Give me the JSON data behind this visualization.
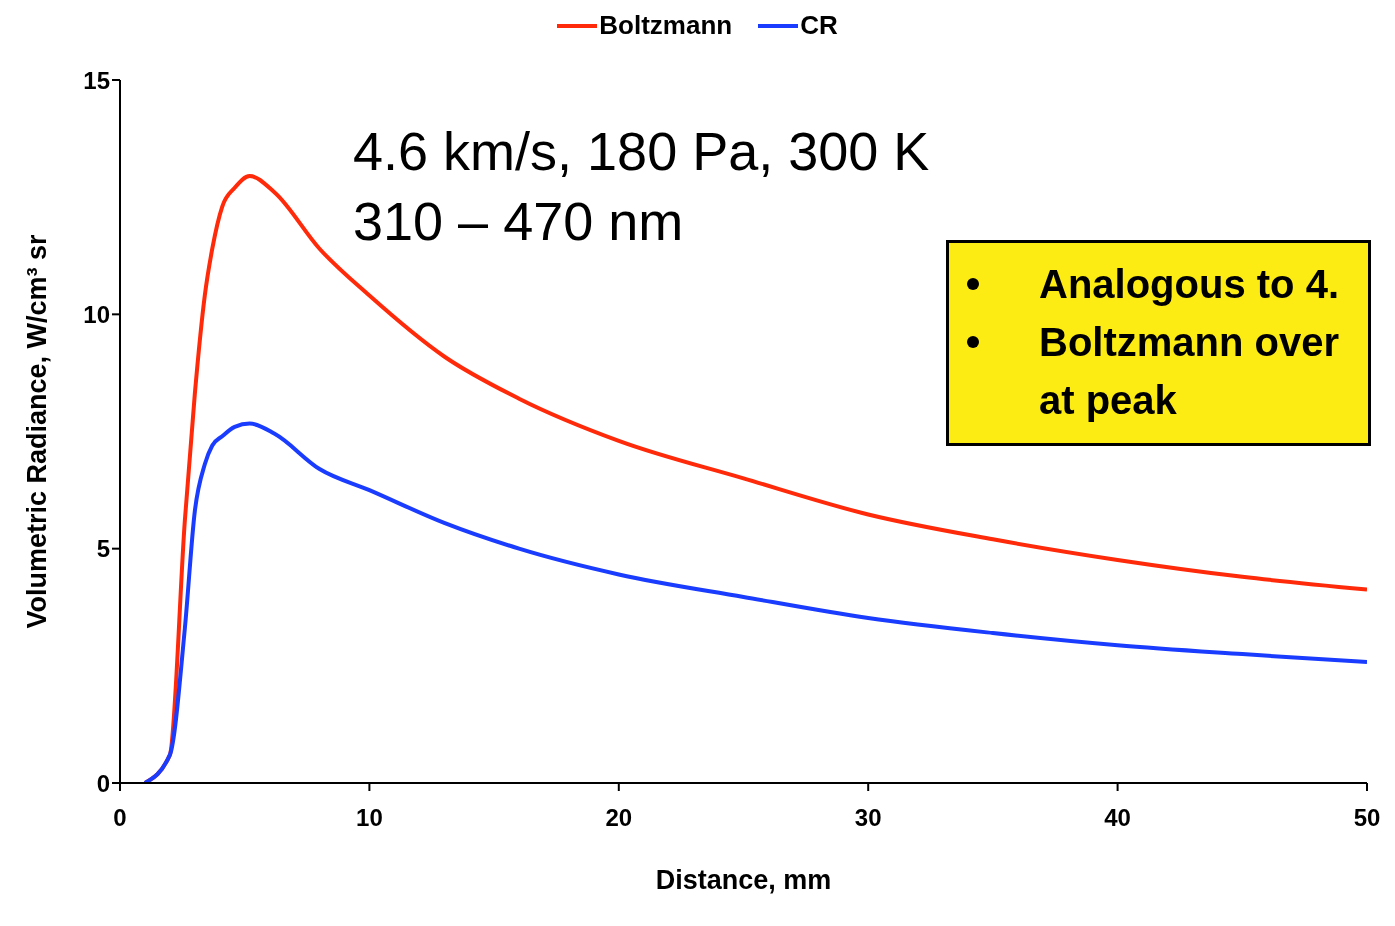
{
  "chart_data": {
    "type": "line",
    "xlabel": "Distance, mm",
    "ylabel": "Volumetric Radiance, W/cm³ sr",
    "x": [
      1,
      2,
      2.6,
      3,
      3.4,
      3.7,
      4.1,
      4.6,
      5.2,
      6.2,
      8,
      10,
      13,
      16,
      20,
      25,
      30,
      35,
      40,
      45,
      50
    ],
    "series": [
      {
        "name": "Boltzmann",
        "color": "#ff2a0a",
        "values": [
          0,
          0.6,
          5.6,
          8.3,
          10.4,
          11.4,
          12.3,
          12.7,
          12.95,
          12.6,
          11.4,
          10.4,
          9.1,
          8.2,
          7.3,
          6.5,
          5.73,
          5.2,
          4.76,
          4.4,
          4.13
        ]
      },
      {
        "name": "CR",
        "color": "#1a3cff",
        "values": [
          0,
          0.6,
          3.3,
          5.8,
          6.8,
          7.2,
          7.4,
          7.6,
          7.67,
          7.45,
          6.7,
          6.25,
          5.55,
          5.0,
          4.45,
          3.97,
          3.52,
          3.2,
          2.94,
          2.75,
          2.58
        ]
      }
    ],
    "xlim": [
      0,
      50
    ],
    "xticks": [
      0,
      10,
      20,
      30,
      40,
      50
    ],
    "ylim": [
      0,
      15
    ],
    "yticks": [
      0,
      5,
      10,
      15
    ],
    "grid": false,
    "legend": "top",
    "marker": "none",
    "line_style": "solid",
    "annotations": [
      "4.6 km/s, 180 Pa, 300 K",
      "310 – 470 nm",
      "Analogous to 4.",
      "Boltzmann over at peak"
    ]
  }
}
